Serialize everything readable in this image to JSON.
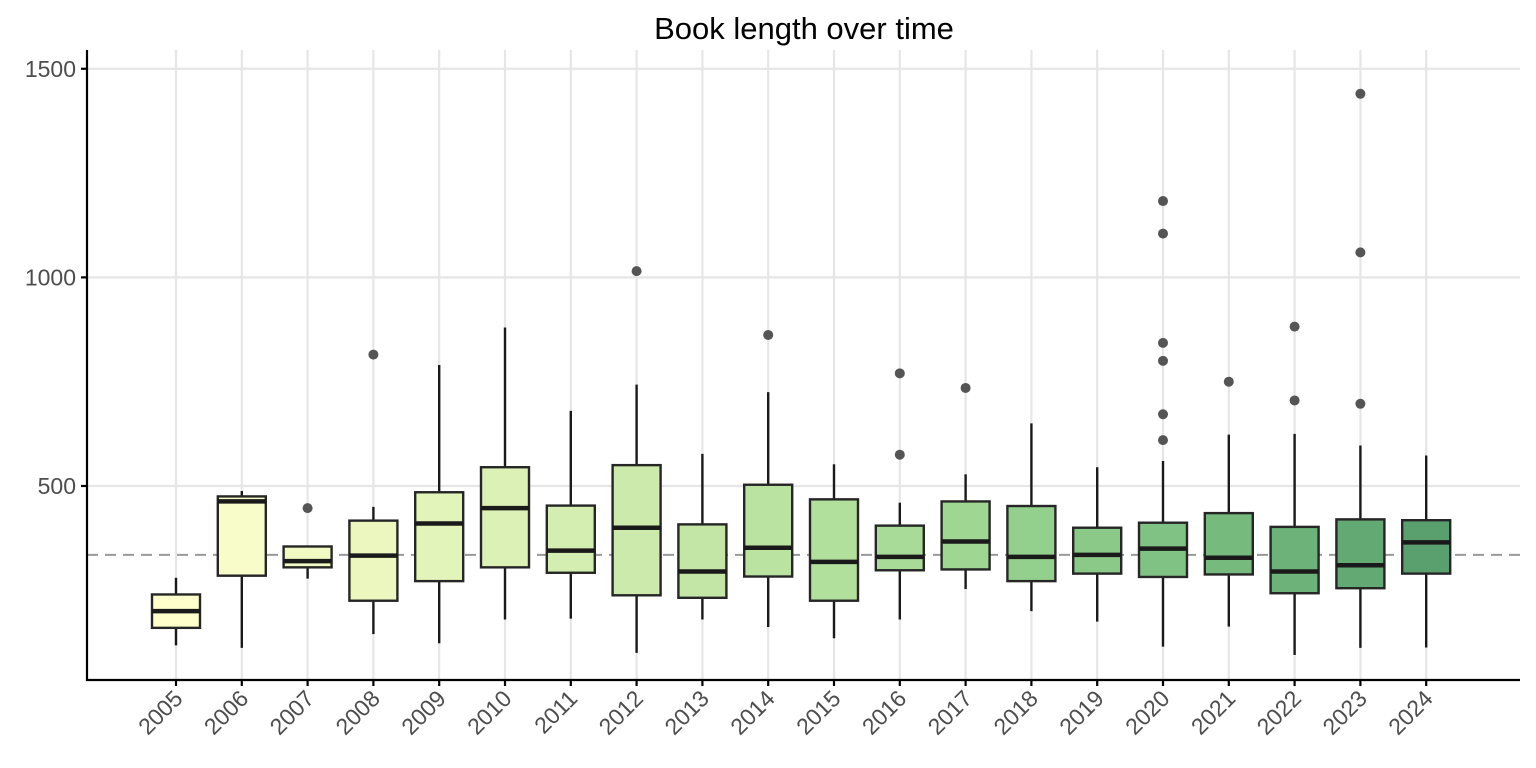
{
  "chart_data": {
    "type": "boxplot",
    "title": "Book length over time",
    "xlabel": "",
    "ylabel": "",
    "ylim": [
      35,
      1545
    ],
    "yticks": [
      500,
      1000,
      1500
    ],
    "y_tick_labels": [
      "500",
      "1000",
      "1500"
    ],
    "reference_line": {
      "y": 335,
      "style": "dashed",
      "color": "#999999"
    },
    "grid": true,
    "legend": "none",
    "categories": [
      "2005",
      "2006",
      "2007",
      "2008",
      "2009",
      "2010",
      "2011",
      "2012",
      "2013",
      "2014",
      "2015",
      "2016",
      "2017",
      "2018",
      "2019",
      "2020",
      "2021",
      "2022",
      "2023",
      "2024"
    ],
    "boxes": [
      {
        "x": "2005",
        "min": 118,
        "q1": 160,
        "median": 200,
        "q3": 240,
        "max": 280,
        "outliers": [],
        "color": "#ffffcc"
      },
      {
        "x": "2006",
        "min": 112,
        "q1": 285,
        "median": 463,
        "q3": 475,
        "max": 488,
        "outliers": [],
        "color": "#f7fcc8"
      },
      {
        "x": "2007",
        "min": 278,
        "q1": 305,
        "median": 320,
        "q3": 355,
        "max": 355,
        "outliers": [
          447
        ],
        "color": "#f2fac3"
      },
      {
        "x": "2008",
        "min": 145,
        "q1": 225,
        "median": 333,
        "q3": 417,
        "max": 450,
        "outliers": [
          815
        ],
        "color": "#ebf7bf"
      },
      {
        "x": "2009",
        "min": 123,
        "q1": 272,
        "median": 410,
        "q3": 485,
        "max": 790,
        "outliers": [],
        "color": "#e3f4ba"
      },
      {
        "x": "2010",
        "min": 180,
        "q1": 305,
        "median": 447,
        "q3": 545,
        "max": 880,
        "outliers": [],
        "color": "#dcf1b5"
      },
      {
        "x": "2011",
        "min": 182,
        "q1": 292,
        "median": 345,
        "q3": 453,
        "max": 680,
        "outliers": [],
        "color": "#d3eeb0"
      },
      {
        "x": "2012",
        "min": 100,
        "q1": 238,
        "median": 400,
        "q3": 550,
        "max": 743,
        "outliers": [
          1015
        ],
        "color": "#cbeaab"
      },
      {
        "x": "2013",
        "min": 180,
        "q1": 232,
        "median": 295,
        "q3": 408,
        "max": 577,
        "outliers": [],
        "color": "#c3e6a6"
      },
      {
        "x": "2014",
        "min": 162,
        "q1": 283,
        "median": 352,
        "q3": 503,
        "max": 725,
        "outliers": [
          862
        ],
        "color": "#bae3a1"
      },
      {
        "x": "2015",
        "min": 135,
        "q1": 225,
        "median": 318,
        "q3": 468,
        "max": 552,
        "outliers": [],
        "color": "#b1df9c"
      },
      {
        "x": "2016",
        "min": 180,
        "q1": 298,
        "median": 330,
        "q3": 405,
        "max": 460,
        "outliers": [
          575,
          770
        ],
        "color": "#a8db97"
      },
      {
        "x": "2017",
        "min": 253,
        "q1": 300,
        "median": 367,
        "q3": 463,
        "max": 528,
        "outliers": [
          735
        ],
        "color": "#9ed692"
      },
      {
        "x": "2018",
        "min": 200,
        "q1": 272,
        "median": 330,
        "q3": 452,
        "max": 650,
        "outliers": [],
        "color": "#94d08d"
      },
      {
        "x": "2019",
        "min": 175,
        "q1": 290,
        "median": 335,
        "q3": 400,
        "max": 545,
        "outliers": [],
        "color": "#8ac988"
      },
      {
        "x": "2020",
        "min": 115,
        "q1": 282,
        "median": 350,
        "q3": 412,
        "max": 560,
        "outliers": [
          610,
          672,
          800,
          843,
          1105,
          1183
        ],
        "color": "#80c283"
      },
      {
        "x": "2021",
        "min": 163,
        "q1": 288,
        "median": 328,
        "q3": 435,
        "max": 623,
        "outliers": [
          750
        ],
        "color": "#76ba7e"
      },
      {
        "x": "2022",
        "min": 95,
        "q1": 243,
        "median": 295,
        "q3": 402,
        "max": 625,
        "outliers": [
          705,
          882
        ],
        "color": "#6cb279"
      },
      {
        "x": "2023",
        "min": 112,
        "q1": 255,
        "median": 310,
        "q3": 420,
        "max": 597,
        "outliers": [
          697,
          1060,
          1440
        ],
        "color": "#63a974"
      },
      {
        "x": "2024",
        "min": 113,
        "q1": 290,
        "median": 365,
        "q3": 418,
        "max": 573,
        "outliers": [],
        "color": "#5aa06f"
      }
    ]
  }
}
